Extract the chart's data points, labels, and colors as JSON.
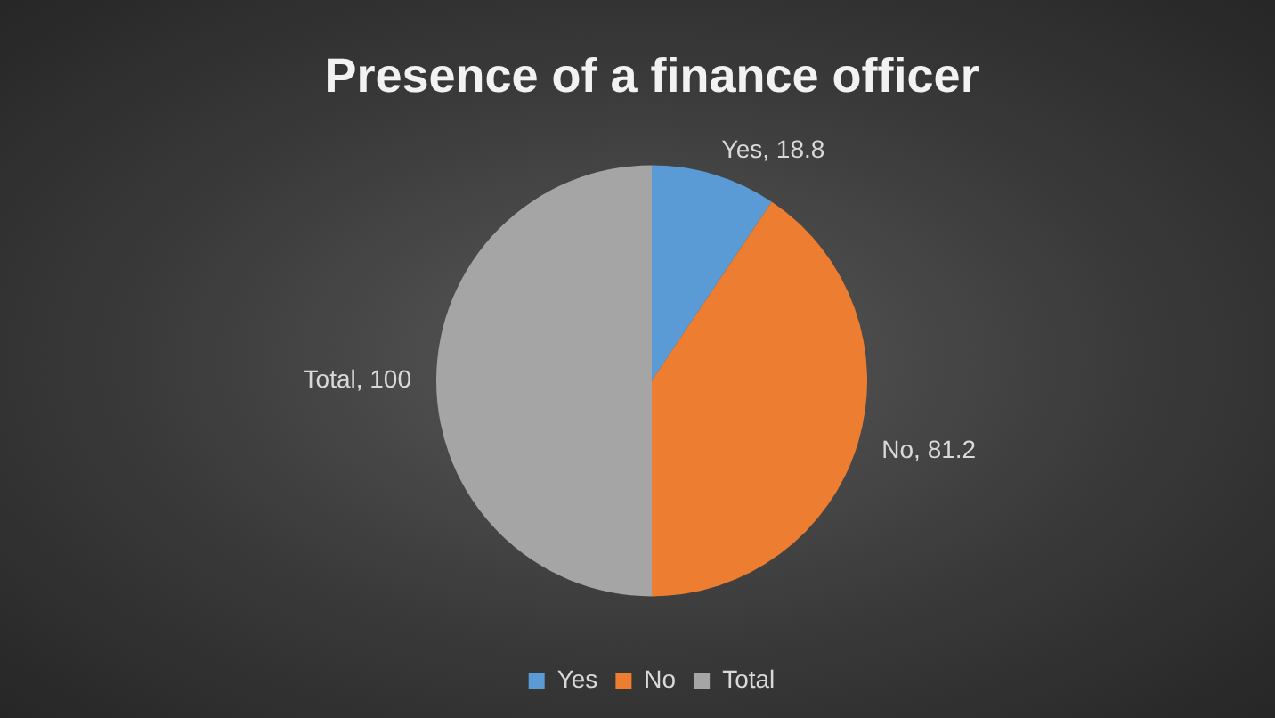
{
  "chart_data": {
    "type": "pie",
    "title": "Presence of a finance officer",
    "categories": [
      "Yes",
      "No",
      "Total"
    ],
    "values": [
      18.8,
      81.2,
      100
    ],
    "value_labels": [
      "Yes, 18.8",
      "No, 81.2",
      "Total, 100"
    ],
    "colors": [
      "#5b9bd5",
      "#ed7d31",
      "#a5a5a5"
    ],
    "legend": "bottom"
  }
}
